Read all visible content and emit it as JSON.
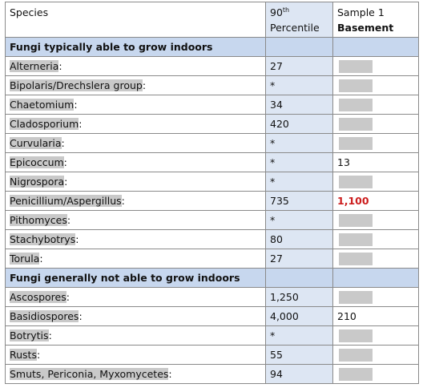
{
  "header": {
    "species": "Species",
    "percentile_num": "90",
    "percentile_sup": "th",
    "percentile_word": "Percentile",
    "sample": "Sample 1",
    "location": "Basement"
  },
  "sections": [
    {
      "title": "Fungi typically able to grow indoors",
      "rows": [
        {
          "name": "Alterneria",
          "suffix": ":",
          "p90": "27",
          "sample": ""
        },
        {
          "name": "Bipolaris/Drechslera group",
          "suffix": ":",
          "p90": "*",
          "sample": ""
        },
        {
          "name": "Chaetomium",
          "suffix": ":",
          "p90": "34",
          "sample": ""
        },
        {
          "name": "Cladosporium",
          "suffix": ":",
          "p90": "420",
          "sample": ""
        },
        {
          "name": "Curvularia",
          "suffix": ":",
          "p90": "*",
          "sample": ""
        },
        {
          "name": "Epicoccum",
          "suffix": ":",
          "p90": "*",
          "sample": "13"
        },
        {
          "name": "Nigrospora",
          "suffix": ":",
          "p90": "*",
          "sample": ""
        },
        {
          "name": "Penicillium/Aspergillus",
          "suffix": ":",
          "p90": "735",
          "sample": "1,100",
          "sample_alert": true
        },
        {
          "name": "Pithomyces",
          "suffix": ":",
          "p90": "*",
          "sample": ""
        },
        {
          "name": "Stachybotrys",
          "suffix": ":",
          "p90": "80",
          "sample": ""
        },
        {
          "name": "Torula",
          "suffix": ":",
          "p90": "27",
          "sample": ""
        }
      ]
    },
    {
      "title": "Fungi generally not able to grow indoors",
      "rows": [
        {
          "name": "Ascospores",
          "suffix": ":",
          "p90": "1,250",
          "sample": ""
        },
        {
          "name": "Basidiospores",
          "suffix": ":",
          "p90": "4,000",
          "sample": "210"
        },
        {
          "name": "Botrytis",
          "suffix": ":",
          "p90": "*",
          "sample": ""
        },
        {
          "name": "Rusts",
          "suffix": ":",
          "p90": "55",
          "sample": ""
        },
        {
          "name": "Smuts, Periconia, Myxomycetes",
          "suffix": ":",
          "p90": "94",
          "sample": ""
        }
      ]
    }
  ],
  "colors": {
    "alert": "#cc1e1e",
    "section_bg": "#c7d7ee",
    "percentile_col_bg": "#dde6f3",
    "redaction": "#c9c9c9"
  }
}
